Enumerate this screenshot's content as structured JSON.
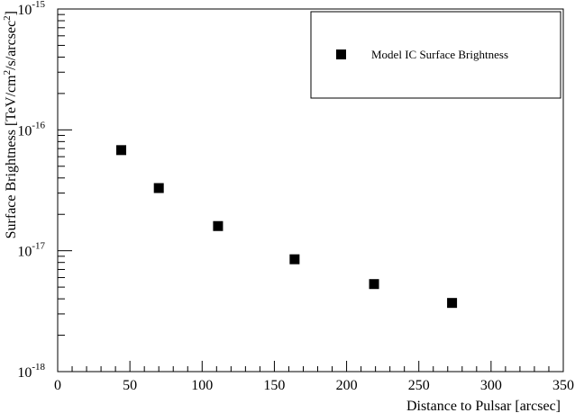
{
  "chart_data": {
    "type": "scatter",
    "title": "",
    "xlabel": "Distance to Pulsar [arcsec]",
    "ylabel_parts": [
      "Surface Brightness [TeV/cm",
      "2",
      "/s/arcsec",
      "2",
      "]"
    ],
    "xlim": [
      0,
      350
    ],
    "ylim": [
      1e-18,
      1e-15
    ],
    "yscale": "log",
    "x_ticks": [
      0,
      50,
      100,
      150,
      200,
      250,
      300,
      350
    ],
    "y_ticks": [
      {
        "value": 1e-18,
        "base": "10",
        "exp": "-18"
      },
      {
        "value": 1e-17,
        "base": "10",
        "exp": "-17"
      },
      {
        "value": 1e-16,
        "base": "10",
        "exp": "-16"
      },
      {
        "value": 1e-15,
        "base": "10",
        "exp": "-15"
      }
    ],
    "grid": false,
    "legend_position": "top-right",
    "series": [
      {
        "name": "Model IC Surface Brightness",
        "marker": "square",
        "color": "#000000",
        "x": [
          44,
          70,
          111,
          164,
          219,
          273
        ],
        "y": [
          6.8e-17,
          3.3e-17,
          1.6e-17,
          8.5e-18,
          5.3e-18,
          3.7e-18
        ]
      }
    ]
  }
}
